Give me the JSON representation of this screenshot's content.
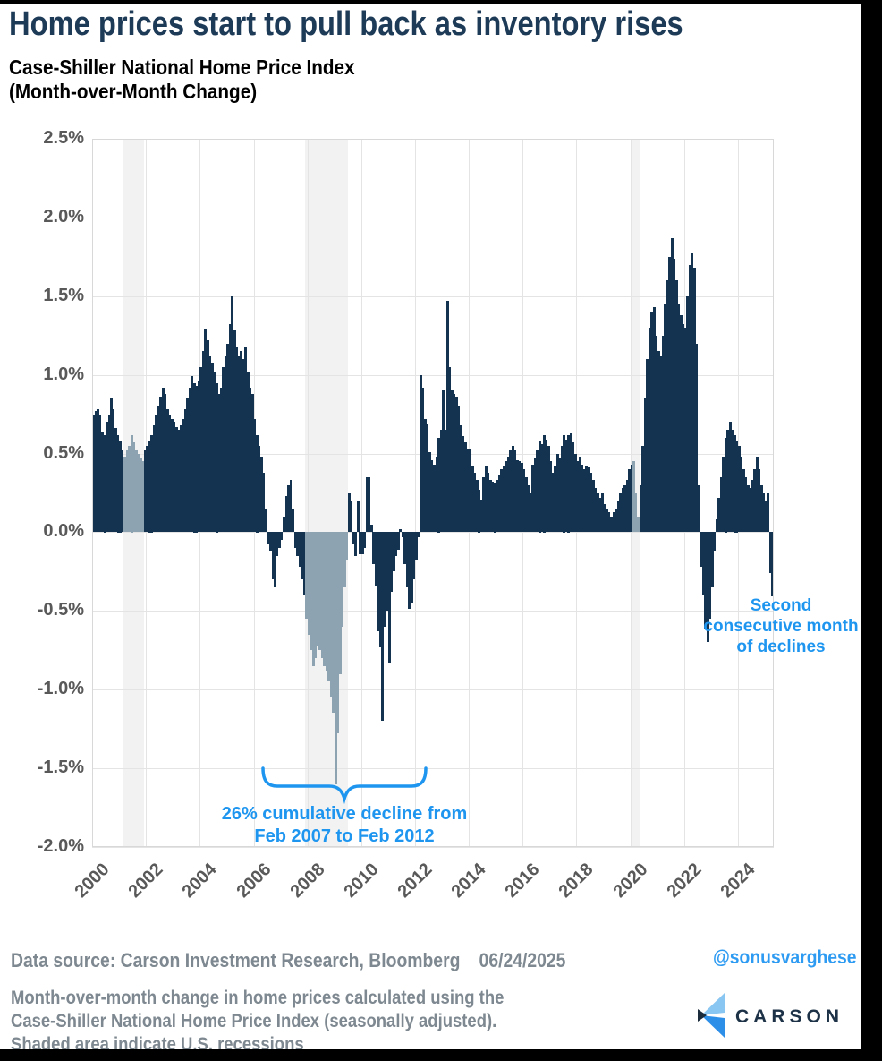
{
  "header": {
    "title": "Home prices start to pull back as inventory rises",
    "subtitle_line1": "Case-Shiller National Home Price Index",
    "subtitle_line2": "(Month-over-Month Change)"
  },
  "chart_data": {
    "type": "bar",
    "title": "Case-Shiller National Home Price Index (Month-over-Month Change)",
    "unit": "percent",
    "frequency": "monthly",
    "start_month": "2000-01",
    "end_month": "2025-04",
    "ylim": [
      -2.0,
      2.5
    ],
    "grid": "on",
    "y_ticks": [
      "2.5%",
      "2.0%",
      "1.5%",
      "1.0%",
      "0.5%",
      "0.0%",
      "-0.5%",
      "-1.0%",
      "-1.5%",
      "-2.0%"
    ],
    "x_ticks": [
      "2000",
      "2002",
      "2004",
      "2006",
      "2008",
      "2010",
      "2012",
      "2014",
      "2016",
      "2018",
      "2020",
      "2022",
      "2024"
    ],
    "values": [
      0.74,
      0.77,
      0.78,
      0.75,
      0.64,
      0.62,
      0.7,
      0.74,
      0.85,
      0.78,
      0.66,
      0.62,
      0.58,
      0.52,
      0.48,
      0.52,
      0.55,
      0.62,
      0.57,
      0.52,
      0.5,
      0.47,
      0.45,
      0.52,
      0.55,
      0.58,
      0.62,
      0.68,
      0.75,
      0.8,
      0.86,
      0.92,
      0.88,
      0.78,
      0.75,
      0.72,
      0.7,
      0.67,
      0.65,
      0.68,
      0.72,
      0.78,
      0.85,
      0.92,
      0.99,
      0.95,
      0.93,
      0.96,
      1.05,
      1.15,
      1.29,
      1.22,
      1.12,
      1.08,
      1.02,
      0.95,
      0.88,
      0.92,
      1.05,
      1.12,
      1.2,
      1.32,
      1.5,
      1.28,
      1.18,
      1.12,
      1.15,
      1.1,
      1.18,
      1.02,
      0.92,
      0.88,
      0.72,
      0.62,
      0.55,
      0.48,
      0.38,
      0.15,
      -0.08,
      -0.12,
      -0.3,
      -0.35,
      -0.15,
      -0.1,
      -0.05,
      0.1,
      0.23,
      0.3,
      0.33,
      0.15,
      -0.1,
      -0.15,
      -0.22,
      -0.3,
      -0.4,
      -0.55,
      -0.65,
      -0.75,
      -0.85,
      -0.8,
      -0.72,
      -0.75,
      -0.8,
      -0.85,
      -0.88,
      -0.95,
      -1.05,
      -1.15,
      -1.6,
      -1.28,
      -0.9,
      -0.6,
      -0.35,
      -0.18,
      0.25,
      0.2,
      -0.08,
      -0.15,
      0.2,
      -0.14,
      -0.14,
      -0.1,
      0.35,
      0.35,
      0.05,
      -0.2,
      -0.34,
      -0.63,
      -0.73,
      -1.2,
      -0.6,
      -0.5,
      -0.83,
      -0.38,
      -0.25,
      -0.15,
      -0.11,
      0.02,
      -0.03,
      -0.2,
      -0.35,
      -0.49,
      -0.45,
      -0.3,
      -0.18,
      -0.03,
      1.0,
      0.92,
      0.72,
      0.69,
      0.51,
      0.46,
      0.43,
      0.48,
      0.6,
      0.65,
      0.9,
      0.65,
      1.47,
      1.05,
      0.9,
      0.88,
      0.86,
      0.8,
      0.68,
      0.61,
      0.57,
      0.53,
      0.53,
      0.42,
      0.38,
      0.33,
      0.27,
      0.21,
      0.35,
      0.42,
      0.38,
      0.33,
      0.32,
      0.31,
      0.33,
      0.36,
      0.4,
      0.42,
      0.45,
      0.48,
      0.52,
      0.55,
      0.52,
      0.46,
      0.45,
      0.44,
      0.4,
      0.35,
      0.3,
      0.25,
      0.43,
      0.47,
      0.52,
      0.58,
      0.56,
      0.62,
      0.59,
      0.55,
      0.45,
      0.38,
      0.42,
      0.5,
      0.47,
      0.55,
      0.62,
      0.59,
      0.62,
      0.63,
      0.57,
      0.5,
      0.45,
      0.48,
      0.43,
      0.4,
      0.42,
      0.41,
      0.38,
      0.33,
      0.28,
      0.25,
      0.22,
      0.25,
      0.18,
      0.15,
      0.13,
      0.1,
      0.13,
      0.15,
      0.2,
      0.25,
      0.28,
      0.3,
      0.33,
      0.4,
      0.43,
      0.45,
      0.25,
      0.1,
      0.3,
      0.55,
      0.85,
      1.1,
      1.3,
      1.4,
      1.43,
      1.25,
      1.15,
      1.12,
      1.25,
      1.45,
      1.6,
      1.75,
      1.87,
      1.74,
      1.6,
      1.45,
      1.38,
      1.32,
      1.3,
      1.5,
      1.7,
      1.77,
      1.68,
      1.2,
      0.3,
      -0.22,
      -0.4,
      -0.62,
      -0.7,
      -0.55,
      -0.35,
      -0.12,
      0.08,
      0.22,
      0.35,
      0.48,
      0.6,
      0.65,
      0.7,
      0.65,
      0.62,
      0.58,
      0.55,
      0.48,
      0.4,
      0.35,
      0.3,
      0.28,
      0.33,
      0.4,
      0.48,
      0.4,
      0.3,
      0.25,
      0.2,
      0.25,
      -0.26,
      -0.41
    ],
    "recessions": [
      {
        "start": "2001-03",
        "end": "2001-11"
      },
      {
        "start": "2007-12",
        "end": "2009-06"
      },
      {
        "start": "2020-02",
        "end": "2020-04"
      }
    ],
    "colors": {
      "bar": "#143351",
      "recession_bar": "#8ea3b2",
      "recession_band": "#f2f2f2",
      "annotation": "#1e96f0"
    },
    "legend": "none"
  },
  "annotations": {
    "decline_line1": "26% cumulative decline from",
    "decline_line2": "Feb 2007 to Feb 2012",
    "recent_line1": "Second",
    "recent_line2": "consecutive month",
    "recent_line3": "of declines"
  },
  "footer": {
    "datasource": "Data source: Carson Investment Research, Bloomberg",
    "date": "06/24/2025",
    "handle": "@sonusvarghese",
    "note_line1": "Month-over-month change in home prices calculated using the",
    "note_line2": "Case-Shiller National Home Price Index (seasonally adjusted).",
    "note_line3": "Shaded area indicate U.S. recessions",
    "logo_text": "CARSON"
  }
}
